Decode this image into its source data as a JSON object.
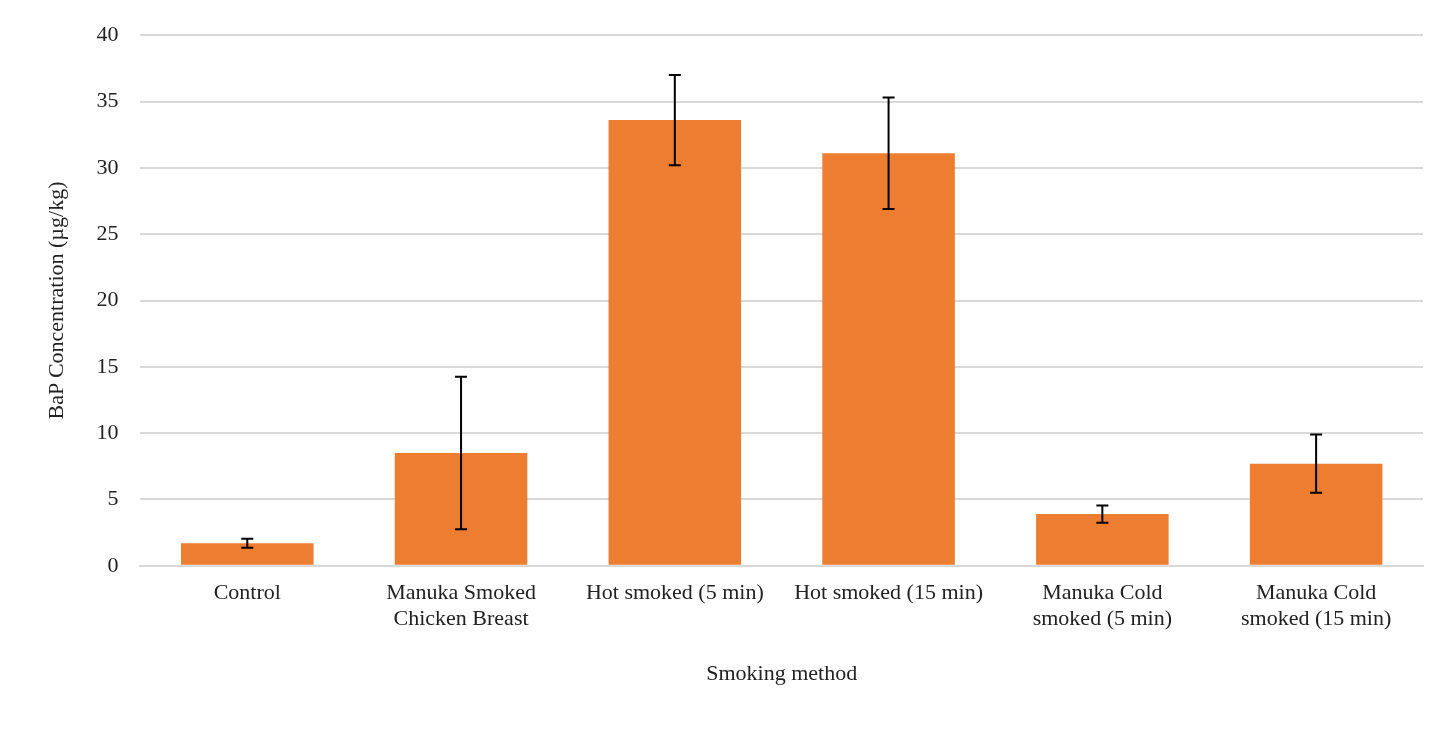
{
  "chart_data": {
    "type": "bar",
    "xlabel": "Smoking method",
    "ylabel": "BaP Concentration (µg/kg)",
    "categories": [
      "Control",
      "Manuka Smoked Chicken Breast",
      "Hot smoked (5 min)",
      "Hot smoked (15 min)",
      "Manuka Cold smoked (5 min)",
      "Manuka Cold smoked (15 min)"
    ],
    "values": [
      1.7,
      8.5,
      33.6,
      31.1,
      3.9,
      7.7
    ],
    "errors": [
      0.33,
      5.75,
      3.4,
      4.2,
      0.65,
      2.2
    ],
    "color": "#ed7d31",
    "ylim": [
      0,
      40
    ],
    "yticks": [
      0,
      5,
      10,
      15,
      20,
      25,
      30,
      35,
      40
    ],
    "grid": "y",
    "legend": false
  }
}
